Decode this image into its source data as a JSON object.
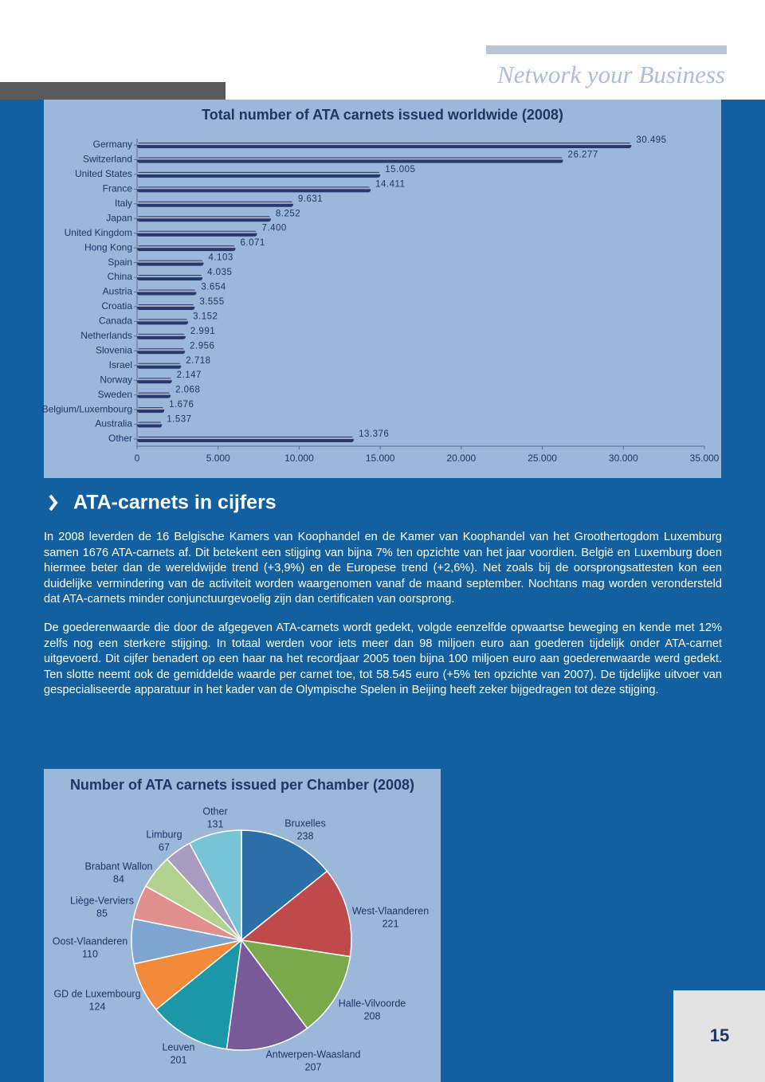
{
  "header": {
    "tagline": "Network your Business"
  },
  "section": {
    "heading": "ATA-carnets in cijfers",
    "paragraphs": [
      "In 2008 leverden de 16 Belgische Kamers van Koophandel en de Kamer van Koophandel van het Groothertogdom Luxemburg samen 1676 ATA-carnets af. Dit betekent een stijging van bijna 7% ten opzichte van het jaar voordien. België en Luxemburg doen hiermee beter dan de wereldwijde trend (+3,9%) en de Europese trend (+2,6%). Net zoals bij de oorsprongsattesten kon een duidelijke vermindering van de activiteit worden waargenomen vanaf de maand september. Nochtans mag worden verondersteld dat ATA-carnets minder conjunctuurgevoelig zijn dan certificaten van oorsprong.",
      "De goederenwaarde die door de afgegeven ATA-carnets wordt gedekt, volgde eenzelfde opwaartse beweging en kende met 12% zelfs nog een sterkere stijging. In totaal werden voor iets meer dan 98 miljoen euro aan goederen tijdelijk onder ATA-carnet uitgevoerd. Dit cijfer benadert op een haar na het recordjaar 2005 toen bijna 100 miljoen euro aan goederenwaarde werd gedekt. Ten slotte neemt ook de gemiddelde waarde per carnet toe, tot 58.545 euro (+5% ten opzichte van 2007). De tijdelijke uitvoer van gespecialiseerde apparatuur in het kader van de Olympische Spelen in Beijing heeft zeker bijgedragen tot deze stijging."
    ]
  },
  "page_number": "15",
  "chart_data": [
    {
      "type": "hbar",
      "title": "Total number of ATA carnets issued worldwide (2008)",
      "categories": [
        "Germany",
        "Switzerland",
        "United States",
        "France",
        "Italy",
        "Japan",
        "United Kingdom",
        "Hong Kong",
        "Spain",
        "China",
        "Austria",
        "Croatia",
        "Canada",
        "Netherlands",
        "Slovenia",
        "Israel",
        "Norway",
        "Sweden",
        "Belgium/Luxembourg",
        "Australia",
        "Other"
      ],
      "values": [
        30495,
        26277,
        15005,
        14411,
        9631,
        8252,
        7400,
        6071,
        4103,
        4035,
        3654,
        3555,
        3152,
        2991,
        2956,
        2718,
        2147,
        2068,
        1676,
        1537,
        13376
      ],
      "value_labels": [
        "30.495",
        "26.277",
        "15.005",
        "14.411",
        "9.631",
        "8.252",
        "7.400",
        "6.071",
        "4.103",
        "4.035",
        "3.654",
        "3.555",
        "3.152",
        "2.991",
        "2.956",
        "2.718",
        "2.147",
        "2.068",
        "1.676",
        "1.537",
        "13.376"
      ],
      "color": "#27386e",
      "xlim": [
        0,
        35000
      ],
      "xticks": [
        0,
        {
          "value": 5000,
          "label": "5.000"
        },
        {
          "value": 10000,
          "label": "10.000"
        },
        {
          "value": 15000,
          "label": "15.000"
        },
        {
          "value": 20000,
          "label": "20.000"
        },
        {
          "value": 25000,
          "label": "25.000"
        },
        {
          "value": 30000,
          "label": "30.000"
        },
        {
          "value": 35000,
          "label": "35.000"
        }
      ]
    },
    {
      "type": "pie",
      "title": "Number of ATA carnets issued per Chamber (2008)",
      "categories": [
        "Bruxelles",
        "West-Vlaanderen",
        "Halle-Vilvoorde",
        "Antwerpen-Waasland",
        "Leuven",
        "GD de Luxembourg",
        "Oost-Vlaanderen",
        "Liège-Verviers",
        "Brabant Wallon",
        "Limburg",
        "Other"
      ],
      "values": [
        238,
        221,
        208,
        207,
        201,
        124,
        110,
        85,
        84,
        67,
        131
      ],
      "colors": [
        "#2b6ea8",
        "#c0494a",
        "#79a94a",
        "#785a98",
        "#1b97a9",
        "#f28a3a",
        "#7ea4d0",
        "#e08f8d",
        "#b4d28f",
        "#a99cc3",
        "#77c4d6"
      ]
    }
  ]
}
